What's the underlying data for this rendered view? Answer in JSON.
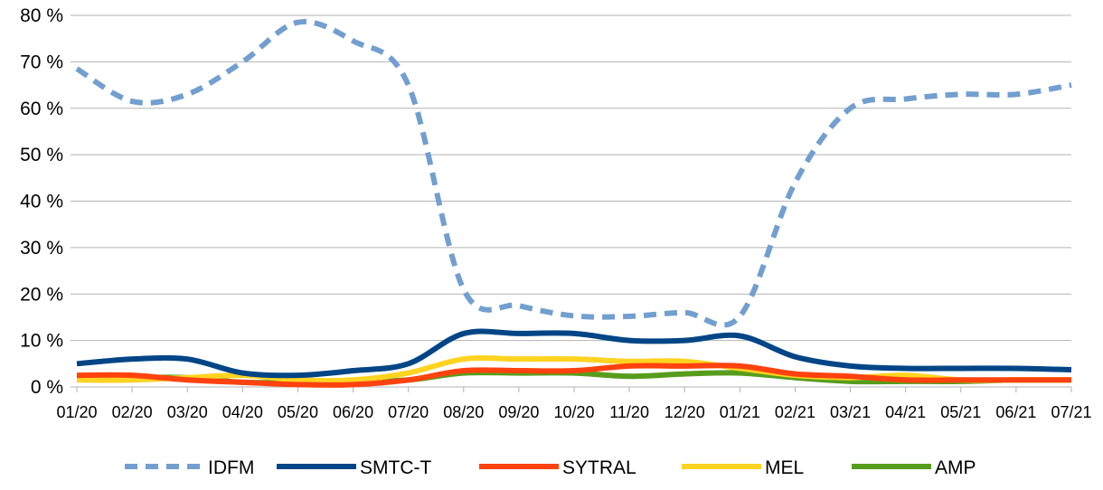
{
  "chart_data": {
    "type": "line",
    "title": "",
    "xlabel": "",
    "ylabel": "",
    "ylim": [
      0,
      80
    ],
    "ytick_labels": [
      "0 %",
      "10 %",
      "20 %",
      "30 %",
      "40 %",
      "50 %",
      "60 %",
      "70 %",
      "80 %"
    ],
    "grid": "horizontal",
    "legend_position": "bottom",
    "categories": [
      "01/20",
      "02/20",
      "03/20",
      "04/20",
      "05/20",
      "06/20",
      "07/20",
      "08/20",
      "09/20",
      "10/20",
      "11/20",
      "12/20",
      "01/21",
      "02/21",
      "03/21",
      "04/21",
      "05/21",
      "06/21",
      "07/21"
    ],
    "series": [
      {
        "name": "IDFM",
        "color": "#729fcf",
        "dash": "dashed",
        "values": [
          68.5,
          61.5,
          63,
          70,
          78.5,
          74.5,
          65,
          21,
          17.5,
          15.3,
          15.2,
          16,
          15.2,
          44,
          60,
          62,
          63,
          63,
          65
        ]
      },
      {
        "name": "SMTC-T",
        "color": "#004586",
        "dash": "solid",
        "values": [
          5,
          6,
          6,
          3,
          2.5,
          3.5,
          5,
          11.5,
          11.5,
          11.5,
          10,
          10,
          11,
          6.5,
          4.5,
          4,
          4,
          4,
          3.7
        ]
      },
      {
        "name": "SYTRAL",
        "color": "#ff420e",
        "dash": "solid",
        "values": [
          2.5,
          2.5,
          1.5,
          1,
          0.5,
          0.5,
          1.5,
          3.5,
          3.5,
          3.5,
          4.5,
          4.5,
          4.5,
          2.8,
          2.3,
          1.5,
          1.5,
          1.5,
          1.5
        ]
      },
      {
        "name": "MEL",
        "color": "#ffd320",
        "dash": "solid",
        "values": [
          1.5,
          1.5,
          2,
          2.5,
          1.5,
          1.5,
          3,
          6,
          6,
          6,
          5.5,
          5.5,
          4,
          2.5,
          2,
          2.5,
          1.5,
          1.5,
          1.5
        ]
      },
      {
        "name": "AMP",
        "color": "#579d1c",
        "dash": "solid",
        "values": [
          2,
          2,
          2,
          1,
          1,
          1.2,
          1.5,
          3,
          3,
          3,
          2.3,
          2.8,
          3,
          2,
          1.2,
          1.2,
          1.2,
          1.5,
          1.5
        ]
      }
    ]
  }
}
